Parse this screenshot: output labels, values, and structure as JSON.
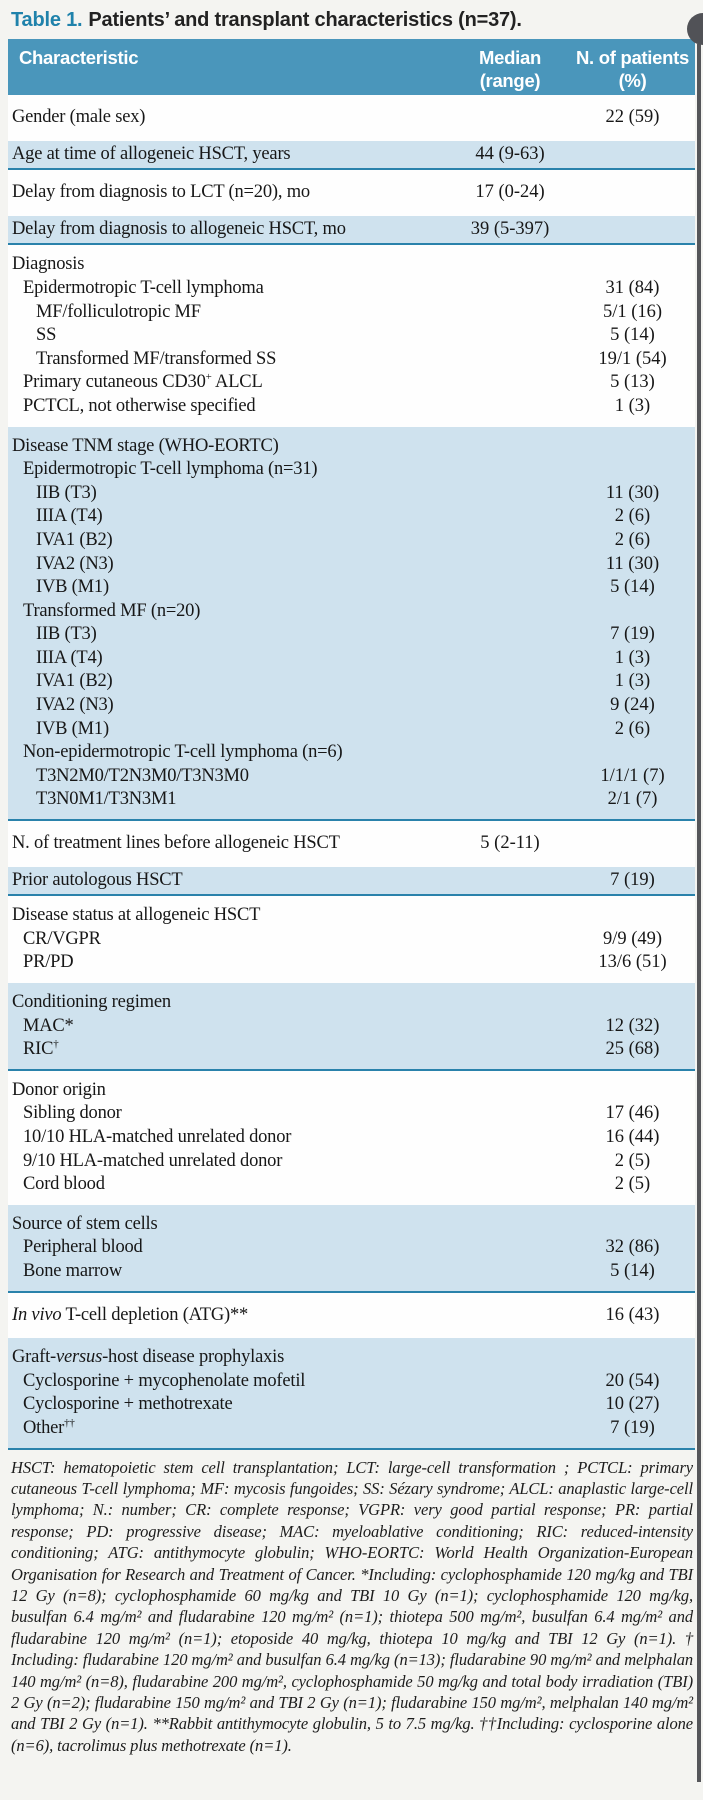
{
  "title": {
    "label": "Table 1.",
    "rest": "Patients’ and transplant characteristics (n=37)."
  },
  "columns": {
    "characteristic": "Characteristic",
    "median_line1": "Median",
    "median_line2": "(range)",
    "patients_line1": "N. of patients",
    "patients_line2": "(%)"
  },
  "colors": {
    "header_bg": "#4a96bb",
    "row_blue": "#cfe2ee",
    "separator_teal": "#2a82ab",
    "title_accent": "#1f82ab",
    "page_edge": "#55565a"
  },
  "table": {
    "sections": [
      {
        "shade": "white",
        "rows": [
          {
            "label": "Gender (male sex)",
            "indent": 0,
            "median": "",
            "patients": "22 (59)"
          }
        ]
      },
      {
        "shade": "blue",
        "rows": [
          {
            "label": "Age at time of allogeneic HSCT, years",
            "indent": 0,
            "median": "44 (9-63)",
            "patients": ""
          }
        ]
      },
      {
        "shade": "white",
        "rows": [
          {
            "label": "Delay from diagnosis to LCT (n=20), mo",
            "indent": 0,
            "median": "17 (0-24)",
            "patients": ""
          }
        ]
      },
      {
        "shade": "blue",
        "rows": [
          {
            "label": "Delay from diagnosis to allogeneic HSCT, mo",
            "indent": 0,
            "median": "39 (5-397)",
            "patients": ""
          }
        ]
      },
      {
        "shade": "white",
        "rows": [
          {
            "label": "Diagnosis",
            "indent": 0,
            "median": "",
            "patients": ""
          },
          {
            "label": "Epidermotropic T-cell lymphoma",
            "indent": 1,
            "median": "",
            "patients": "31 (84)"
          },
          {
            "label": "MF/folliculotropic MF",
            "indent": 2,
            "median": "",
            "patients": "5/1 (16)"
          },
          {
            "label": "SS",
            "indent": 2,
            "median": "",
            "patients": "5 (14)"
          },
          {
            "label": "Transformed  MF/transformed SS",
            "indent": 2,
            "median": "",
            "patients": "19/1 (54)"
          },
          {
            "parts": [
              {
                "t": "Primary cutaneous CD30"
              },
              {
                "t": "+",
                "sup": true
              },
              {
                "t": " ALCL"
              }
            ],
            "indent": 1,
            "median": "",
            "patients": "5 (13)"
          },
          {
            "label": "PCTCL, not otherwise specified",
            "indent": 1,
            "median": "",
            "patients": "1 (3)"
          }
        ]
      },
      {
        "shade": "blue",
        "rows": [
          {
            "label": "Disease TNM stage (WHO-EORTC)",
            "indent": 0,
            "median": "",
            "patients": ""
          },
          {
            "label": "Epidermotropic T-cell lymphoma (n=31)",
            "indent": 1,
            "median": "",
            "patients": ""
          },
          {
            "label": "IIB (T3)",
            "indent": 2,
            "median": "",
            "patients": "11 (30)"
          },
          {
            "label": "IIIA (T4)",
            "indent": 2,
            "median": "",
            "patients": "2 (6)"
          },
          {
            "label": "IVA1 (B2)",
            "indent": 2,
            "median": "",
            "patients": "2 (6)"
          },
          {
            "label": "IVA2 (N3)",
            "indent": 2,
            "median": "",
            "patients": "11 (30)"
          },
          {
            "label": "IVB (M1)",
            "indent": 2,
            "median": "",
            "patients": "5 (14)"
          },
          {
            "label": "Transformed MF (n=20)",
            "indent": 1,
            "median": "",
            "patients": ""
          },
          {
            "label": "IIB (T3)",
            "indent": 2,
            "median": "",
            "patients": "7 (19)"
          },
          {
            "label": "IIIA (T4)",
            "indent": 2,
            "median": "",
            "patients": "1 (3)"
          },
          {
            "label": "IVA1 (B2)",
            "indent": 2,
            "median": "",
            "patients": "1 (3)"
          },
          {
            "label": "IVA2 (N3)",
            "indent": 2,
            "median": "",
            "patients": "9 (24)"
          },
          {
            "label": "IVB (M1)",
            "indent": 2,
            "median": "",
            "patients": "2 (6)"
          },
          {
            "label": "Non-epidermotropic T-cell lymphoma (n=6)",
            "indent": 1,
            "median": "",
            "patients": ""
          },
          {
            "label": "T3N2M0/T2N3M0/T3N3M0",
            "indent": 2,
            "median": "",
            "patients": "1/1/1 (7)"
          },
          {
            "label": "T3N0M1/T3N3M1",
            "indent": 2,
            "median": "",
            "patients": "2/1 (7)"
          }
        ]
      },
      {
        "shade": "white",
        "rows": [
          {
            "label": "N. of treatment lines before allogeneic HSCT",
            "indent": 0,
            "median": "5 (2-11)",
            "patients": ""
          }
        ]
      },
      {
        "shade": "blue",
        "rows": [
          {
            "label": "Prior autologous HSCT",
            "indent": 0,
            "median": "",
            "patients": "7 (19)"
          }
        ]
      },
      {
        "shade": "white",
        "rows": [
          {
            "label": "Disease status at allogeneic HSCT",
            "indent": 0,
            "median": "",
            "patients": ""
          },
          {
            "label": "CR/VGPR",
            "indent": 1,
            "median": "",
            "patients": "9/9 (49)"
          },
          {
            "label": "PR/PD",
            "indent": 1,
            "median": "",
            "patients": "13/6 (51)"
          }
        ]
      },
      {
        "shade": "blue",
        "rows": [
          {
            "label": "Conditioning regimen",
            "indent": 0,
            "median": "",
            "patients": ""
          },
          {
            "label": "MAC*",
            "indent": 1,
            "median": "",
            "patients": "12 (32)"
          },
          {
            "parts": [
              {
                "t": "RIC"
              },
              {
                "t": "†",
                "sup": true
              }
            ],
            "indent": 1,
            "median": "",
            "patients": "25 (68)"
          }
        ]
      },
      {
        "shade": "white",
        "rows": [
          {
            "label": "Donor origin",
            "indent": 0,
            "median": "",
            "patients": ""
          },
          {
            "label": "Sibling donor",
            "indent": 1,
            "median": "",
            "patients": "17 (46)"
          },
          {
            "label": "10/10 HLA-matched unrelated donor",
            "indent": 1,
            "median": "",
            "patients": "16 (44)"
          },
          {
            "label": "9/10 HLA-matched unrelated donor",
            "indent": 1,
            "median": "",
            "patients": "2 (5)"
          },
          {
            "label": "Cord blood",
            "indent": 1,
            "median": "",
            "patients": "2 (5)"
          }
        ]
      },
      {
        "shade": "blue",
        "rows": [
          {
            "label": "Source of stem cells",
            "indent": 0,
            "median": "",
            "patients": ""
          },
          {
            "label": "Peripheral blood",
            "indent": 1,
            "median": "",
            "patients": "32 (86)"
          },
          {
            "label": "Bone marrow",
            "indent": 1,
            "median": "",
            "patients": "5 (14)"
          }
        ]
      },
      {
        "shade": "white",
        "rows": [
          {
            "parts": [
              {
                "t": "In vivo",
                "i": true
              },
              {
                "t": " T-cell depletion (ATG)**"
              }
            ],
            "indent": 0,
            "median": "",
            "patients": "16 (43)"
          }
        ]
      },
      {
        "shade": "blue",
        "rows": [
          {
            "parts": [
              {
                "t": "Graft-"
              },
              {
                "t": "versus",
                "i": true
              },
              {
                "t": "-host disease prophylaxis"
              }
            ],
            "indent": 0,
            "median": "",
            "patients": ""
          },
          {
            "label": "Cyclosporine + mycophenolate mofetil",
            "indent": 1,
            "median": "",
            "patients": "20 (54)"
          },
          {
            "label": "Cyclosporine + methotrexate",
            "indent": 1,
            "median": "",
            "patients": "10 (27)"
          },
          {
            "parts": [
              {
                "t": "Other"
              },
              {
                "t": "††",
                "sup": true
              }
            ],
            "indent": 1,
            "median": "",
            "patients": "7 (19)"
          }
        ]
      }
    ]
  },
  "footnote": "HSCT: hematopoietic stem cell transplantation; LCT: large-cell transformation ; PCTCL: primary cutaneous T-cell lymphoma; MF: mycosis fungoides; SS: Sézary syndrome; ALCL: anaplastic large-cell lymphoma; N.: number; CR: complete response; VGPR: very good partial response; PR: partial response; PD: progressive disease; MAC: myeloablative conditioning; RIC: reduced-intensity conditioning; ATG: antithymocyte globulin; WHO-EORTC: World Health Organization-European Organisation for Research and Treatment of Cancer. *Including: cyclophosphamide 120 mg/kg and TBI 12 Gy (n=8); cyclophosphamide 60 mg/kg and TBI 10 Gy (n=1); cyclophosphamide 120 mg/kg, busulfan 6.4 mg/m² and fludarabine 120 mg/m² (n=1); thiotepa 500 mg/m², busulfan 6.4 mg/m² and fludarabine 120 mg/m² (n=1); etoposide 40 mg/kg, thiotepa 10 mg/kg and TBI 12 Gy (n=1). † Including: fludarabine 120 mg/m² and busulfan 6.4 mg/kg (n=13); fludarabine 90 mg/m² and melphalan 140 mg/m² (n=8), fludarabine 200 mg/m², cyclophosphamide 50 mg/kg and total body irradiation (TBI) 2 Gy (n=2); fludarabine 150 mg/m² and TBI 2 Gy (n=1); fludarabine 150 mg/m², melphalan 140 mg/m² and TBI 2 Gy (n=1). **Rabbit antithymocyte globulin, 5 to 7.5 mg/kg. ††Including: cyclosporine alone (n=6), tacrolimus plus methotrexate (n=1)."
}
